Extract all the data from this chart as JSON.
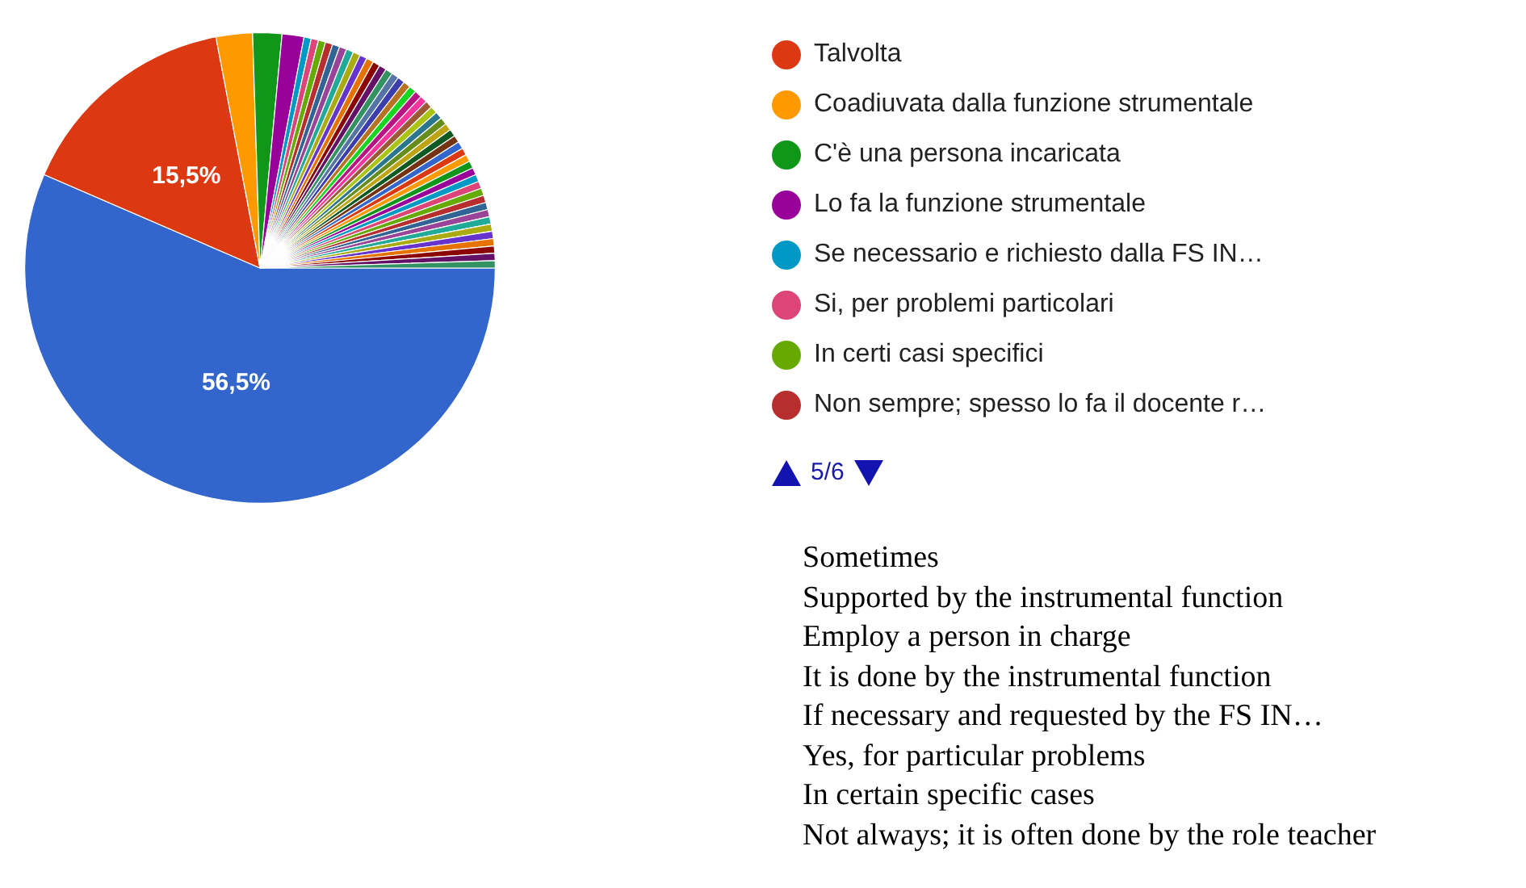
{
  "chart_data": {
    "type": "pie",
    "legend": "right",
    "categories": [
      null,
      "Talvolta",
      "Coadiuvata dalla funzione strumentale",
      "C'è una persona incaricata",
      "Lo fa la funzione strumentale",
      "Se necessario e richiesto dalla FS IN…",
      "Si, per problemi particolari",
      "In certi casi specifici",
      "Non sempre; spesso lo fa il docente r…",
      null,
      null,
      null,
      null,
      null,
      null,
      null,
      null,
      null,
      null,
      null,
      null,
      null,
      null,
      null,
      null,
      null,
      null,
      null,
      null,
      null,
      null,
      null,
      null,
      null,
      null,
      null,
      null,
      null,
      null,
      null,
      null,
      null,
      null,
      null,
      null,
      null,
      null,
      null,
      null
    ],
    "values": [
      56.5,
      15.5,
      2.5,
      2,
      1.5,
      0.5,
      0.5,
      0.5,
      0.5,
      0.5,
      0.5,
      0.5,
      0.5,
      0.5,
      0.5,
      0.5,
      0.5,
      0.5,
      0.5,
      0.5,
      0.5,
      0.5,
      0.5,
      0.5,
      0.5,
      0.5,
      0.5,
      0.5,
      0.5,
      0.5,
      0.5,
      0.5,
      0.5,
      0.5,
      0.5,
      0.5,
      0.5,
      0.5,
      0.5,
      0.5,
      0.5,
      0.5,
      0.5,
      0.5,
      0.5,
      0.5,
      0.5,
      0.5,
      0.5
    ],
    "colors": [
      "#3366cc",
      "#dc3912",
      "#ff9900",
      "#109618",
      "#990099",
      "#0099c6",
      "#dd4477",
      "#66aa00",
      "#b82e2e",
      "#316395",
      "#994499",
      "#22aa99",
      "#aaaa11",
      "#6633cc",
      "#e67300",
      "#8b0707",
      "#651067",
      "#329262",
      "#5574a6",
      "#3b3eac",
      "#b77322",
      "#16d620",
      "#b91383",
      "#f4359e",
      "#9c5935",
      "#a9c413",
      "#2a778d",
      "#668d1c",
      "#bea413",
      "#0c5922",
      "#743411",
      "#3366cc",
      "#dc3912",
      "#ff9900",
      "#109618",
      "#990099",
      "#0099c6",
      "#dd4477",
      "#66aa00",
      "#b82e2e",
      "#316395",
      "#994499",
      "#22aa99",
      "#aaaa11",
      "#6633cc",
      "#e67300",
      "#8b0707",
      "#651067",
      "#329262"
    ],
    "value_labels": [
      "56,5%",
      "15,5%",
      null,
      null,
      null,
      null,
      null,
      null,
      null,
      null,
      null,
      null,
      null,
      null,
      null,
      null,
      null,
      null,
      null,
      null,
      null,
      null,
      null,
      null,
      null,
      null,
      null,
      null,
      null,
      null,
      null,
      null,
      null,
      null,
      null,
      null,
      null,
      null,
      null,
      null,
      null,
      null,
      null,
      null,
      null,
      null,
      null,
      null,
      null
    ],
    "annotations": [
      "5/6",
      "Sometimes",
      "Supported by the instrumental function",
      "Employ a person in charge",
      "It is done by the instrumental function",
      "If necessary and requested by the FS IN…",
      "Yes, for particular problems",
      "In certain specific cases",
      "Not always; it is often done by the role teacher"
    ]
  }
}
